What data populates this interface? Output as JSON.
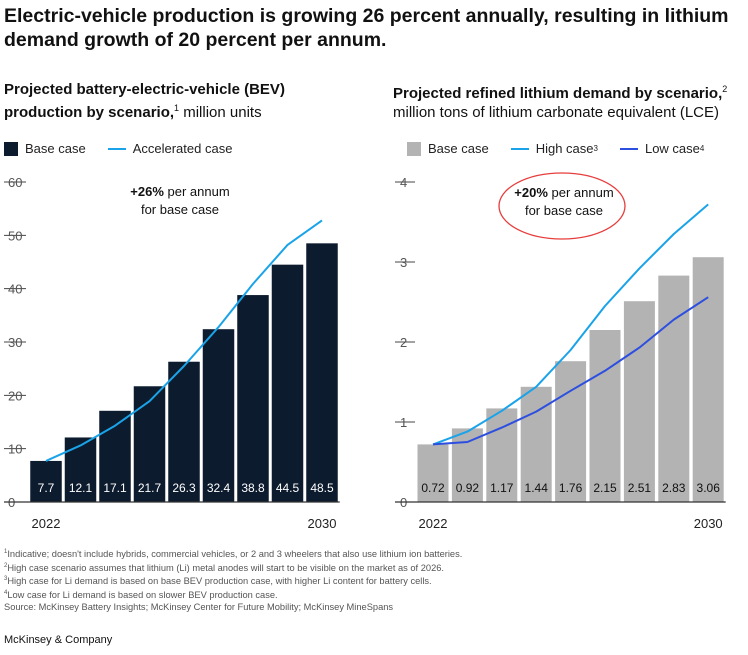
{
  "headline": "Electric-vehicle production is growing 26 percent annually, resulting in lithium demand growth of 20 percent per annum.",
  "colors": {
    "navy": "#0c1b2e",
    "gray_bar": "#b3b3b3",
    "light_blue": "#1aa3e8",
    "dark_blue": "#2d4fe0",
    "ellipse": "#e63d3d"
  },
  "left": {
    "title_bold": "Projected battery-electric-vehicle (BEV) production by scenario,",
    "title_sup": "1",
    "title_unit": " million units",
    "legend": {
      "base": "Base case",
      "accel": "Accelerated case"
    },
    "annotation_bold": "+26%",
    "annotation_rest": " per annum",
    "annotation_line2": "for base case"
  },
  "right": {
    "title_bold": "Projected refined lithium demand by scenario,",
    "title_sup": "2",
    "title_unit": "million tons of lithium carbonate equivalent (LCE)",
    "legend": {
      "base": "Base case",
      "high": "High case",
      "high_sup": "3",
      "low": "Low case",
      "low_sup": "4"
    },
    "annotation_bold": "+20%",
    "annotation_rest": " per annum",
    "annotation_line2": "for base case"
  },
  "chart_data": [
    {
      "type": "bar",
      "title": "Projected battery-electric-vehicle (BEV) production by scenario, million units",
      "categories": [
        "2022",
        "2023",
        "2024",
        "2025",
        "2026",
        "2027",
        "2028",
        "2029",
        "2030"
      ],
      "x_tick_labels": [
        "2022",
        "",
        "",
        "",
        "",
        "",
        "",
        "",
        "2030"
      ],
      "series": [
        {
          "name": "Base case",
          "kind": "bar",
          "values": [
            7.7,
            12.1,
            17.1,
            21.7,
            26.3,
            32.4,
            38.8,
            44.5,
            48.5
          ]
        },
        {
          "name": "Accelerated case",
          "kind": "line",
          "values": [
            7.7,
            10.6,
            14.3,
            18.9,
            25.5,
            32.8,
            40.9,
            48.2,
            52.8
          ]
        }
      ],
      "value_labels": [
        "7.7",
        "12.1",
        "17.1",
        "21.7",
        "26.3",
        "32.4",
        "38.8",
        "44.5",
        "48.5"
      ],
      "yticks": [
        0,
        10,
        20,
        30,
        40,
        50,
        60
      ],
      "ylim": [
        0,
        60
      ],
      "legend": "top-left"
    },
    {
      "type": "bar",
      "title": "Projected refined lithium demand by scenario, million tons of lithium carbonate equivalent (LCE)",
      "categories": [
        "2022",
        "2023",
        "2024",
        "2025",
        "2026",
        "2027",
        "2028",
        "2029",
        "2030"
      ],
      "x_tick_labels": [
        "2022",
        "",
        "",
        "",
        "",
        "",
        "",
        "",
        "2030"
      ],
      "series": [
        {
          "name": "Base case",
          "kind": "bar",
          "values": [
            0.72,
            0.92,
            1.17,
            1.44,
            1.76,
            2.15,
            2.51,
            2.83,
            3.06
          ]
        },
        {
          "name": "High case",
          "kind": "line",
          "values": [
            0.72,
            0.88,
            1.14,
            1.44,
            1.9,
            2.45,
            2.92,
            3.35,
            3.72
          ]
        },
        {
          "name": "Low case",
          "kind": "line",
          "values": [
            0.72,
            0.75,
            0.93,
            1.13,
            1.39,
            1.64,
            1.93,
            2.28,
            2.56
          ]
        }
      ],
      "value_labels": [
        "0.72",
        "0.92",
        "1.17",
        "1.44",
        "1.76",
        "2.15",
        "2.51",
        "2.83",
        "3.06"
      ],
      "yticks": [
        0,
        1,
        2,
        3,
        4
      ],
      "ylim": [
        0,
        4
      ],
      "legend": "top-left"
    }
  ],
  "footnotes": [
    {
      "num": "1",
      "text": "Indicative; doesn't include hybrids, commercial vehicles, or 2 and 3 wheelers that also use lithium ion batteries."
    },
    {
      "num": "2",
      "text": "High case scenario assumes that lithium (Li) metal anodes will start to be visible on the market as of 2026."
    },
    {
      "num": "3",
      "text": "High case for Li demand is based on base BEV production case, with higher Li content for battery cells."
    },
    {
      "num": "4",
      "text": "Low case for Li demand is based on slower BEV production case."
    }
  ],
  "source": " Source: McKinsey Battery Insights; McKinsey Center for Future Mobility; McKinsey MineSpans",
  "brand": "McKinsey & Company"
}
